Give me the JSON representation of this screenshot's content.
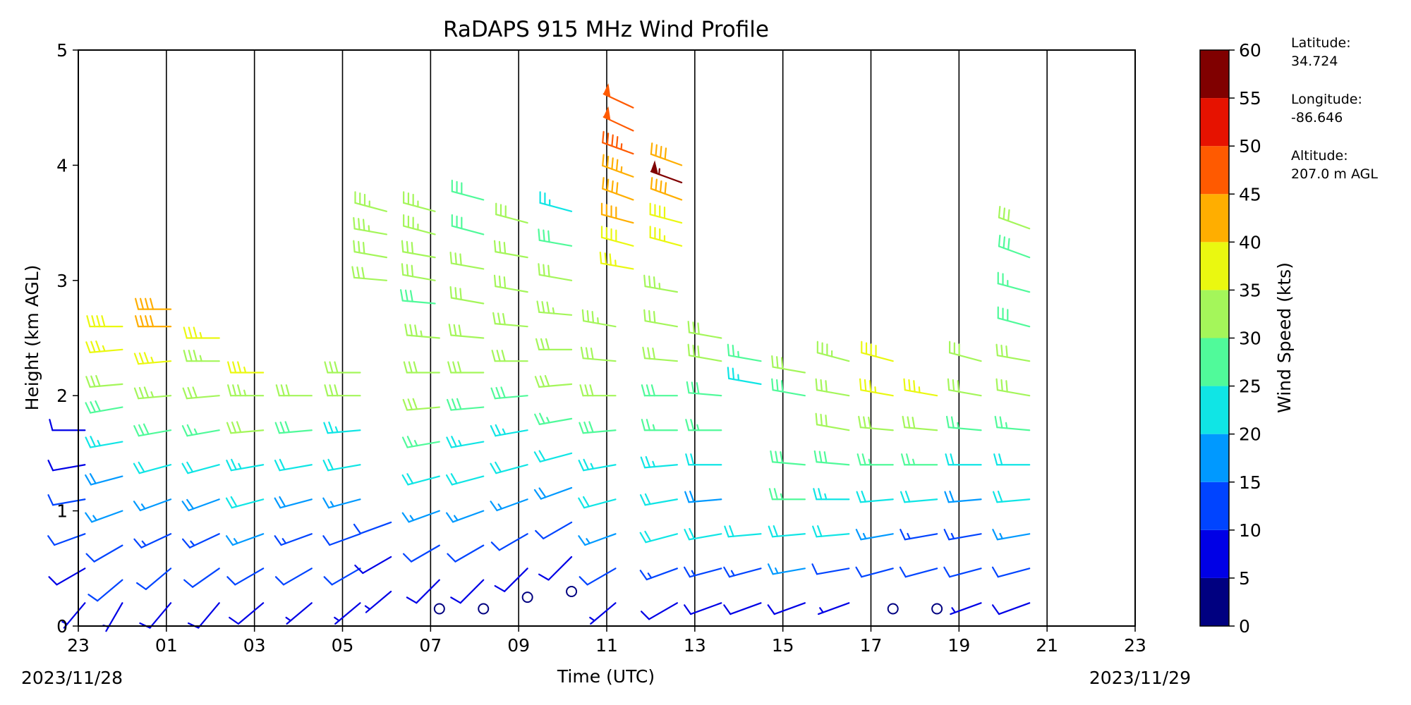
{
  "chart_data": {
    "type": "wind-barb-profile",
    "title": "RaDAPS 915 MHz Wind Profile",
    "xlabel": "Time (UTC)",
    "ylabel": "Height (km AGL)",
    "x_ticks": [
      "23",
      "01",
      "03",
      "05",
      "07",
      "09",
      "11",
      "13",
      "15",
      "17",
      "19",
      "21",
      "23"
    ],
    "x_range_hours": [
      0,
      24
    ],
    "y_ticks": [
      "0",
      "1",
      "2",
      "3",
      "4",
      "5"
    ],
    "ylim": [
      0,
      5
    ],
    "date_start": "2023/11/28",
    "date_end": "2023/11/29",
    "grid": "vertical lines at every labeled hour",
    "colorbar": {
      "label": "Wind Speed (kts)",
      "ticks": [
        "0",
        "5",
        "10",
        "15",
        "20",
        "25",
        "30",
        "35",
        "40",
        "45",
        "50",
        "55",
        "60"
      ],
      "bins": [
        {
          "min": 0,
          "max": 5,
          "color": "#000080"
        },
        {
          "min": 5,
          "max": 10,
          "color": "#0000e6"
        },
        {
          "min": 10,
          "max": 15,
          "color": "#0044ff"
        },
        {
          "min": 15,
          "max": 20,
          "color": "#0099ff"
        },
        {
          "min": 20,
          "max": 25,
          "color": "#10e5e5"
        },
        {
          "min": 25,
          "max": 30,
          "color": "#50fa9a"
        },
        {
          "min": 30,
          "max": 35,
          "color": "#a4f65a"
        },
        {
          "min": 35,
          "max": 40,
          "color": "#eaf810"
        },
        {
          "min": 40,
          "max": 45,
          "color": "#ffae00"
        },
        {
          "min": 45,
          "max": 50,
          "color": "#ff5a00"
        },
        {
          "min": 50,
          "max": 55,
          "color": "#e61200"
        },
        {
          "min": 55,
          "max": 60,
          "color": "#800000"
        }
      ]
    },
    "profiles": [
      {
        "t": 0.15,
        "heights": [
          0.2,
          0.5,
          0.8,
          1.1,
          1.4,
          1.7
        ],
        "speeds": [
          6,
          9,
          10,
          12,
          8,
          8
        ],
        "dirs": [
          220,
          240,
          250,
          260,
          260,
          270
        ]
      },
      {
        "t": 1.0,
        "heights": [
          0.2,
          0.4,
          0.7,
          1.0,
          1.3,
          1.6,
          1.9,
          2.1,
          2.4,
          2.6
        ],
        "speeds": [
          7,
          10,
          12,
          16,
          18,
          24,
          28,
          32,
          36,
          38
        ],
        "dirs": [
          210,
          230,
          240,
          250,
          255,
          260,
          260,
          265,
          265,
          270
        ]
      },
      {
        "t": 2.1,
        "heights": [
          0.2,
          0.5,
          0.8,
          1.1,
          1.4,
          1.7,
          2.0,
          2.3,
          2.6,
          2.75
        ],
        "speeds": [
          8,
          12,
          14,
          16,
          22,
          28,
          34,
          36,
          42,
          40
        ],
        "dirs": [
          220,
          230,
          245,
          250,
          255,
          260,
          265,
          265,
          270,
          270
        ]
      },
      {
        "t": 3.2,
        "heights": [
          0.2,
          0.5,
          0.8,
          1.1,
          1.4,
          1.7,
          2.0,
          2.3,
          2.5
        ],
        "speeds": [
          8,
          11,
          14,
          18,
          20,
          26,
          30,
          34,
          36
        ],
        "dirs": [
          220,
          235,
          245,
          250,
          255,
          260,
          265,
          270,
          270
        ]
      },
      {
        "t": 4.2,
        "heights": [
          0.2,
          0.5,
          0.8,
          1.1,
          1.4,
          1.7,
          2.0,
          2.2
        ],
        "speeds": [
          8,
          12,
          15,
          22,
          24,
          30,
          34,
          36
        ],
        "dirs": [
          230,
          240,
          250,
          255,
          260,
          265,
          270,
          270
        ]
      },
      {
        "t": 5.3,
        "heights": [
          0.2,
          0.5,
          0.8,
          1.1,
          1.4,
          1.7,
          2.0
        ],
        "speeds": [
          7,
          10,
          14,
          18,
          22,
          28,
          32
        ],
        "dirs": [
          230,
          240,
          250,
          255,
          260,
          265,
          270
        ]
      },
      {
        "t": 6.4,
        "heights": [
          0.2,
          0.5,
          0.8,
          1.1,
          1.4,
          1.7,
          2.0,
          2.2
        ],
        "speeds": [
          6,
          10,
          12,
          16,
          20,
          24,
          30,
          32
        ],
        "dirs": [
          230,
          240,
          250,
          255,
          260,
          265,
          270,
          270
        ]
      },
      {
        "t": 7.0,
        "heights": [
          3.0,
          3.2,
          3.4,
          3.6
        ],
        "speeds": [
          30,
          32,
          34,
          34
        ],
        "dirs": [
          275,
          280,
          280,
          285
        ]
      },
      {
        "t": 7.1,
        "heights": [
          0.3,
          0.6,
          0.9
        ],
        "speeds": [
          6,
          8,
          10
        ],
        "dirs": [
          230,
          240,
          250
        ]
      },
      {
        "t": 8.1,
        "heights": [
          2.8,
          3.0,
          3.2,
          3.4,
          3.6
        ],
        "speeds": [
          28,
          30,
          32,
          34,
          34
        ],
        "dirs": [
          275,
          280,
          280,
          285,
          285
        ]
      },
      {
        "t": 8.2,
        "heights": [
          0.15,
          0.4,
          0.7,
          1.0,
          1.3,
          1.6,
          1.9,
          2.2,
          2.5
        ],
        "speeds": [
          3,
          8,
          12,
          16,
          22,
          26,
          30,
          32,
          34
        ],
        "dirs": [
          200,
          225,
          240,
          250,
          255,
          260,
          265,
          270,
          275
        ]
      },
      {
        "t": 9.2,
        "heights": [
          0.15,
          0.4,
          0.7,
          1.0,
          1.3,
          1.6,
          1.9,
          2.2,
          2.5,
          2.8,
          3.1,
          3.4,
          3.7
        ],
        "speeds": [
          3,
          8,
          12,
          16,
          20,
          24,
          28,
          30,
          30,
          30,
          30,
          28,
          28
        ],
        "dirs": [
          200,
          225,
          240,
          250,
          255,
          260,
          265,
          270,
          275,
          280,
          280,
          285,
          285
        ]
      },
      {
        "t": 10.2,
        "heights": [
          0.25,
          0.5,
          0.8,
          1.1,
          1.4,
          1.7,
          2.0,
          2.3,
          2.6,
          2.9,
          3.2,
          3.5
        ],
        "speeds": [
          3,
          8,
          12,
          16,
          20,
          24,
          28,
          30,
          30,
          32,
          30,
          30
        ],
        "dirs": [
          200,
          225,
          240,
          250,
          255,
          260,
          265,
          270,
          275,
          280,
          280,
          285
        ]
      },
      {
        "t": 11.2,
        "heights": [
          0.3,
          0.6,
          0.9,
          1.2,
          1.5,
          1.8,
          2.1,
          2.4,
          2.7,
          3.0,
          3.3,
          3.6
        ],
        "speeds": [
          3,
          8,
          12,
          18,
          22,
          26,
          30,
          32,
          34,
          30,
          28,
          24
        ],
        "dirs": [
          200,
          225,
          240,
          250,
          255,
          260,
          265,
          270,
          275,
          280,
          280,
          285
        ]
      },
      {
        "t": 12.2,
        "heights": [
          0.2,
          0.5,
          0.8,
          1.1,
          1.4,
          1.7,
          2.0,
          2.3,
          2.6
        ],
        "speeds": [
          6,
          10,
          16,
          20,
          24,
          28,
          30,
          32,
          34
        ],
        "dirs": [
          230,
          240,
          250,
          255,
          260,
          265,
          270,
          275,
          280
        ]
      },
      {
        "t": 12.6,
        "heights": [
          3.1,
          3.3,
          3.5,
          3.7,
          3.9,
          4.1,
          4.3,
          4.5
        ],
        "speeds": [
          36,
          38,
          40,
          42,
          44,
          46,
          48,
          48
        ],
        "dirs": [
          280,
          285,
          285,
          290,
          290,
          290,
          295,
          295
        ]
      },
      {
        "t": 13.6,
        "heights": [
          0.2,
          0.5,
          0.8,
          1.1,
          1.4,
          1.7,
          2.0,
          2.3,
          2.6,
          2.9
        ],
        "speeds": [
          8,
          14,
          20,
          22,
          24,
          26,
          28,
          30,
          32,
          34
        ],
        "dirs": [
          240,
          250,
          255,
          260,
          265,
          270,
          270,
          275,
          280,
          280
        ]
      },
      {
        "t": 13.7,
        "heights": [
          3.3,
          3.5,
          3.7,
          3.85,
          4.0
        ],
        "speeds": [
          36,
          38,
          40,
          56,
          42
        ],
        "dirs": [
          285,
          285,
          290,
          290,
          290
        ]
      },
      {
        "t": 14.6,
        "heights": [
          0.2,
          0.5,
          0.8,
          1.1,
          1.4,
          1.7,
          2.0,
          2.3,
          2.5
        ],
        "speeds": [
          8,
          14,
          20,
          18,
          22,
          26,
          28,
          30,
          32
        ],
        "dirs": [
          250,
          255,
          260,
          265,
          270,
          270,
          275,
          280,
          280
        ]
      },
      {
        "t": 15.5,
        "heights": [
          0.2,
          0.5,
          0.8,
          2.1,
          2.3
        ],
        "speeds": [
          8,
          14,
          22,
          24,
          26
        ],
        "dirs": [
          250,
          255,
          265,
          280,
          280
        ]
      },
      {
        "t": 16.5,
        "heights": [
          0.2,
          0.5,
          0.8,
          1.1,
          1.4,
          2.0,
          2.2
        ],
        "speeds": [
          8,
          16,
          22,
          26,
          28,
          28,
          30
        ],
        "dirs": [
          250,
          260,
          265,
          270,
          275,
          280,
          280
        ]
      },
      {
        "t": 17.5,
        "heights": [
          0.2,
          0.5,
          0.8,
          1.1,
          1.4,
          1.7,
          2.0,
          2.3
        ],
        "speeds": [
          6,
          12,
          20,
          24,
          28,
          30,
          32,
          34
        ],
        "dirs": [
          250,
          260,
          265,
          270,
          275,
          280,
          280,
          285
        ]
      },
      {
        "t": 18.5,
        "heights": [
          0.15,
          0.5,
          0.8,
          1.1,
          1.4,
          1.7,
          2.0,
          2.3
        ],
        "speeds": [
          3,
          10,
          16,
          22,
          26,
          32,
          36,
          38
        ],
        "dirs": [
          200,
          255,
          260,
          265,
          270,
          275,
          280,
          285
        ]
      },
      {
        "t": 19.5,
        "heights": [
          0.15,
          0.5,
          0.8,
          1.1,
          1.4,
          1.7,
          2.0
        ],
        "speeds": [
          3,
          10,
          14,
          20,
          26,
          30,
          36
        ],
        "dirs": [
          200,
          255,
          260,
          265,
          270,
          275,
          280
        ]
      },
      {
        "t": 20.5,
        "heights": [
          0.2,
          0.5,
          0.8,
          1.1,
          1.4,
          1.7,
          2.0,
          2.3
        ],
        "speeds": [
          6,
          10,
          14,
          18,
          22,
          26,
          30,
          32
        ],
        "dirs": [
          250,
          255,
          260,
          265,
          270,
          275,
          280,
          285
        ]
      },
      {
        "t": 21.6,
        "heights": [
          0.2,
          0.5,
          0.8,
          1.1,
          1.4,
          1.7,
          2.0,
          2.3,
          2.6,
          2.9,
          3.2,
          3.45
        ],
        "speeds": [
          8,
          12,
          16,
          20,
          22,
          26,
          30,
          30,
          28,
          26,
          28,
          32
        ],
        "dirs": [
          250,
          255,
          260,
          265,
          270,
          275,
          280,
          280,
          285,
          285,
          290,
          290
        ]
      }
    ]
  },
  "site_info": {
    "latitude_label": "Latitude:",
    "latitude": "34.724",
    "longitude_label": "Longitude:",
    "longitude": "-86.646",
    "altitude_label": "Altitude:",
    "altitude": "207.0 m AGL"
  }
}
